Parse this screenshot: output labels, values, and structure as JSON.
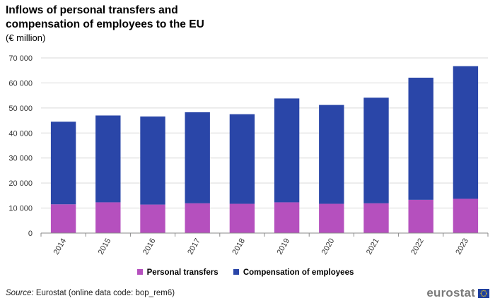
{
  "header": {
    "title_lines": [
      "Inflows of personal transfers and",
      "compensation of employees to the EU"
    ],
    "subtitle": "(€ million)"
  },
  "colors": {
    "personal_transfers": "#b550be",
    "compensation": "#2a46a8",
    "grid": "#d9d9d9",
    "axis": "#8a8a8a"
  },
  "chart_data": {
    "type": "bar",
    "stacked": true,
    "categories": [
      "2014",
      "2015",
      "2016",
      "2017",
      "2018",
      "2019",
      "2020",
      "2021",
      "2022",
      "2023"
    ],
    "series": [
      {
        "name": "Personal transfers",
        "values": [
          11500,
          12300,
          11400,
          11900,
          11700,
          12300,
          11700,
          11900,
          13300,
          13700
        ]
      },
      {
        "name": "Compensation of employees",
        "values": [
          33000,
          34700,
          35200,
          36400,
          35800,
          41500,
          39500,
          42200,
          48800,
          53000
        ]
      }
    ],
    "ylim": [
      0,
      70000
    ],
    "yticks": [
      0,
      10000,
      20000,
      30000,
      40000,
      50000,
      60000,
      70000
    ],
    "ytick_labels": [
      "0",
      "10 000",
      "20 000",
      "30 000",
      "40 000",
      "50 000",
      "60 000",
      "70 000"
    ],
    "grid": true,
    "legend_position": "bottom"
  },
  "legend": {
    "items": [
      "Personal transfers",
      "Compensation of employees"
    ]
  },
  "footer": {
    "source_label": "Source:",
    "source_text": " Eurostat (online data code: bop_rem6)",
    "logo_text": "eurostat"
  }
}
